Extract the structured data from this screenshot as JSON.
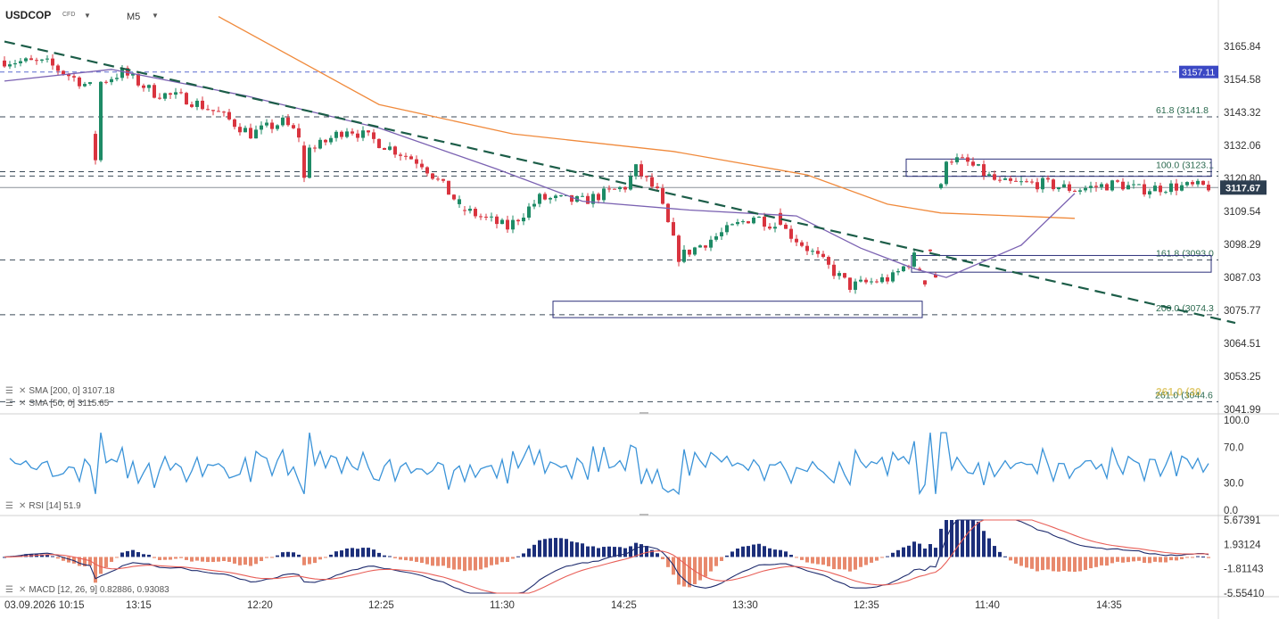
{
  "header": {
    "symbol": "USDCOP",
    "symbol_type": "CFD",
    "timeframe": "M5"
  },
  "indicator_labels": {
    "sma200": "SMA [200, 0] 3107.18",
    "sma50": "SMA [50, 0] 3115.65",
    "rsi": "RSI [14] 51.9",
    "macd": "MACD [12, 26, 9] 0.82886, 0.93083"
  },
  "icons": {
    "settings": "settings-lines-icon",
    "close": "close-x-icon",
    "dropdown": "caret-down-icon"
  },
  "colors": {
    "up": "#1e8b66",
    "down": "#d9343f",
    "sma200": "#f08a3c",
    "sma50": "#7b62b2",
    "trendline": "#1c5d48",
    "level": "#3b4a58",
    "rsi": "#3a93d8",
    "macd_line": "#1f2c6e",
    "signal_line": "#e85f58",
    "hist_pos": "#1c2f7a",
    "hist_neg": "#e8896d",
    "price_tag": "#2d3e50",
    "ref_tag": "#3b48c4",
    "box": "#2b2f7a"
  },
  "chart_data": {
    "type": "candlestick",
    "y_ticks": [
      "3165.84",
      "3154.58",
      "3143.32",
      "3132.06",
      "3120.80",
      "3109.54",
      "3098.29",
      "3087.03",
      "3075.77",
      "3064.51",
      "3053.25",
      "3041.99"
    ],
    "ylim": [
      3041.99,
      3165.84
    ],
    "x_labels": [
      "03.09.2026 10:15",
      "13:15",
      "12:20",
      "12:25",
      "11:30",
      "14:25",
      "13:30",
      "12:35",
      "11:40",
      "14:35"
    ],
    "current_price": {
      "value": 3117.67,
      "label": "3117.67"
    },
    "reference_line": {
      "value": 3157.11,
      "label": "3157.11"
    },
    "fib_levels": [
      {
        "value": 3141.8,
        "label": "61.8 (3141.8"
      },
      {
        "value": 3123.1,
        "label": "100.0 (3123.1"
      },
      {
        "value": 3093.0,
        "label": "161.8 (3093.0"
      },
      {
        "value": 3074.3,
        "label": "200.0 (3074.3"
      },
      {
        "value": 3044.6,
        "label": "261.0 (3044.6"
      }
    ],
    "fib_overlap_label": "261.0 (30",
    "extra_levels": [
      3121.6
    ],
    "zones": [
      {
        "from_bar": 169,
        "to_bar": 225,
        "low": 3121.5,
        "high": 3127.4
      },
      {
        "from_bar": 170,
        "to_bar": 225,
        "low": 3088.8,
        "high": 3094.5
      },
      {
        "from_bar": 103,
        "to_bar": 171,
        "low": 3073.3,
        "high": 3078.9
      }
    ],
    "trendline": {
      "from": {
        "bar": 0,
        "price": 3167.5
      },
      "to": {
        "bar": 225,
        "price": 3071.5
      }
    },
    "bar_count": 226,
    "anchors": [
      [
        0,
        3161
      ],
      [
        8,
        3160
      ],
      [
        16,
        3152
      ],
      [
        22,
        3157
      ],
      [
        28,
        3150
      ],
      [
        34,
        3148
      ],
      [
        40,
        3143
      ],
      [
        46,
        3136
      ],
      [
        52,
        3140
      ],
      [
        58,
        3131
      ],
      [
        64,
        3138
      ],
      [
        70,
        3133
      ],
      [
        78,
        3126
      ],
      [
        86,
        3110
      ],
      [
        94,
        3104
      ],
      [
        100,
        3114
      ],
      [
        108,
        3113
      ],
      [
        116,
        3118
      ],
      [
        118,
        3124
      ],
      [
        122,
        3116
      ],
      [
        126,
        3094
      ],
      [
        134,
        3102
      ],
      [
        140,
        3108
      ],
      [
        146,
        3103
      ],
      [
        150,
        3097
      ],
      [
        158,
        3084
      ],
      [
        166,
        3087
      ],
      [
        170,
        3094
      ],
      [
        172,
        3086
      ],
      [
        176,
        3128
      ],
      [
        180,
        3126
      ],
      [
        186,
        3119
      ],
      [
        194,
        3119
      ],
      [
        200,
        3117
      ],
      [
        208,
        3119
      ],
      [
        212,
        3117
      ],
      [
        218,
        3118
      ],
      [
        225,
        3118
      ]
    ],
    "gaps": [
      [
        85,
        86
      ],
      [
        171,
        175
      ]
    ],
    "outliers": {
      "17": [
        3136,
        3127
      ],
      "56": [
        3132,
        3121
      ],
      "145": [
        3109,
        3105
      ],
      "174": [
        3088,
        3087
      ]
    },
    "sma200": {
      "from": {
        "bar": 40,
        "price": 3176
      },
      "to": {
        "bar": 200,
        "price": 3107.18
      },
      "points": [
        [
          40,
          3176
        ],
        [
          70,
          3146
        ],
        [
          95,
          3136
        ],
        [
          125,
          3130
        ],
        [
          150,
          3122
        ],
        [
          165,
          3112
        ],
        [
          175,
          3109
        ],
        [
          200,
          3107.18
        ]
      ]
    },
    "sma50": {
      "points": [
        [
          0,
          3154
        ],
        [
          20,
          3158
        ],
        [
          45,
          3149
        ],
        [
          70,
          3138
        ],
        [
          92,
          3124
        ],
        [
          108,
          3113
        ],
        [
          128,
          3110
        ],
        [
          148,
          3108
        ],
        [
          160,
          3097
        ],
        [
          170,
          3090
        ],
        [
          176,
          3087
        ],
        [
          190,
          3098
        ],
        [
          200,
          3115.65
        ]
      ]
    },
    "rsi": {
      "ylim": [
        0,
        100
      ],
      "ticks": [
        "100.0",
        "70.0",
        "30.0",
        "0.0"
      ],
      "value": 51.9
    },
    "macd": {
      "ticks": [
        "5.67391",
        "1.93124",
        "-1.81143",
        "-5.55410"
      ],
      "ylim": [
        -5.5541,
        5.67391
      ],
      "macd": 0.82886,
      "signal": 0.93083
    }
  }
}
